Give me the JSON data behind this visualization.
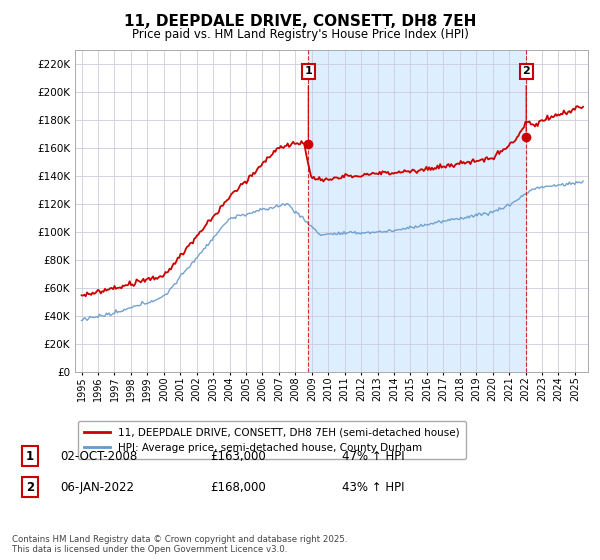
{
  "title": "11, DEEPDALE DRIVE, CONSETT, DH8 7EH",
  "subtitle": "Price paid vs. HM Land Registry's House Price Index (HPI)",
  "legend_line1": "11, DEEPDALE DRIVE, CONSETT, DH8 7EH (semi-detached house)",
  "legend_line2": "HPI: Average price, semi-detached house, County Durham",
  "footer": "Contains HM Land Registry data © Crown copyright and database right 2025.\nThis data is licensed under the Open Government Licence v3.0.",
  "annotation1": {
    "label": "1",
    "date": "02-OCT-2008",
    "price": "£163,000",
    "change": "47% ↑ HPI"
  },
  "annotation2": {
    "label": "2",
    "date": "06-JAN-2022",
    "price": "£168,000",
    "change": "43% ↑ HPI"
  },
  "price_color": "#cc0000",
  "hpi_color": "#6699cc",
  "shade_color": "#ddeeff",
  "ylim": [
    0,
    230000
  ],
  "ytick_step": 20000,
  "xlim_left": 1994.6,
  "xlim_right": 2025.8,
  "sale1_x": 2008.79,
  "sale1_y": 163000,
  "sale2_x": 2022.04,
  "sale2_y": 168000
}
